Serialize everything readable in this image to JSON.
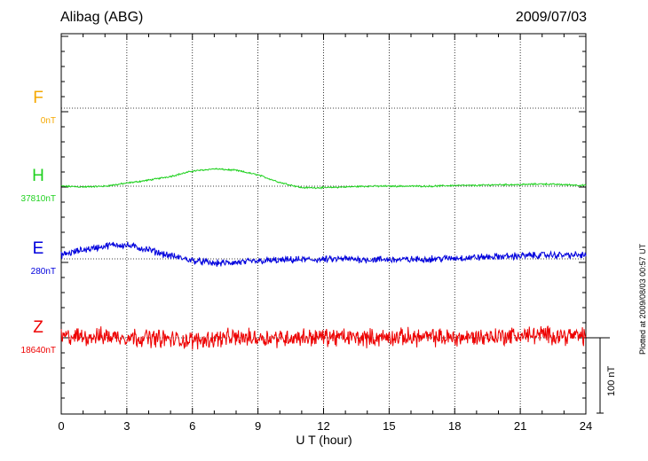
{
  "header": {
    "station": "Alibag (ABG)",
    "date": "2009/07/03"
  },
  "footer": {
    "plotted": "Plotted at 2009/08/03 00:57 UT",
    "scale_label": "100 nT"
  },
  "chart_data": {
    "type": "line",
    "title": "Alibag (ABG)",
    "xlabel": "U T (hour)",
    "ylabel": "",
    "xlim": [
      0,
      24
    ],
    "x_ticks": [
      "0",
      "3",
      "6",
      "9",
      "12",
      "15",
      "18",
      "21",
      "24"
    ],
    "grid": true,
    "scale_bar_nT": 100,
    "series": [
      {
        "name": "F",
        "baseline_label": "0nT",
        "color": "#f5a800",
        "noise_nT": 0,
        "x": [],
        "values": []
      },
      {
        "name": "H",
        "baseline_label": "37810nT",
        "color": "#1fd11f",
        "noise_nT": 0.8,
        "x": [
          0,
          1,
          2,
          3,
          4,
          5,
          6,
          7,
          8,
          9,
          10,
          11,
          12,
          13,
          14,
          15,
          16,
          17,
          18,
          19,
          20,
          21,
          22,
          23,
          24
        ],
        "values": [
          0,
          -1,
          0,
          4,
          8,
          13,
          20,
          23,
          21,
          15,
          5,
          -2,
          -2,
          -1,
          0,
          0,
          0,
          0,
          1,
          1,
          2,
          2,
          3,
          2,
          1
        ]
      },
      {
        "name": "E",
        "baseline_label": "280nT",
        "color": "#0000dd",
        "noise_nT": 3.5,
        "x": [
          0,
          1,
          2,
          2.5,
          3,
          4,
          5,
          6,
          7,
          8,
          9,
          10,
          11,
          12,
          13,
          14,
          15,
          16,
          17,
          18,
          19,
          20,
          21,
          22,
          23,
          24
        ],
        "values": [
          5,
          12,
          17,
          19,
          18,
          12,
          4,
          -2,
          -6,
          -5,
          -3,
          -2,
          -1,
          -1,
          0,
          -1,
          -1,
          -1,
          0,
          1,
          2,
          3,
          4,
          5,
          5,
          5
        ]
      },
      {
        "name": "Z",
        "baseline_label": "18640nT",
        "color": "#ee0000",
        "noise_nT": 9,
        "x": [
          0,
          2,
          4,
          5,
          6,
          7,
          8,
          10,
          12,
          14,
          16,
          18,
          20,
          22,
          24
        ],
        "values": [
          1,
          2,
          0,
          -2,
          -4,
          -1,
          0,
          0,
          1,
          0,
          1,
          0,
          2,
          4,
          2
        ]
      }
    ]
  }
}
